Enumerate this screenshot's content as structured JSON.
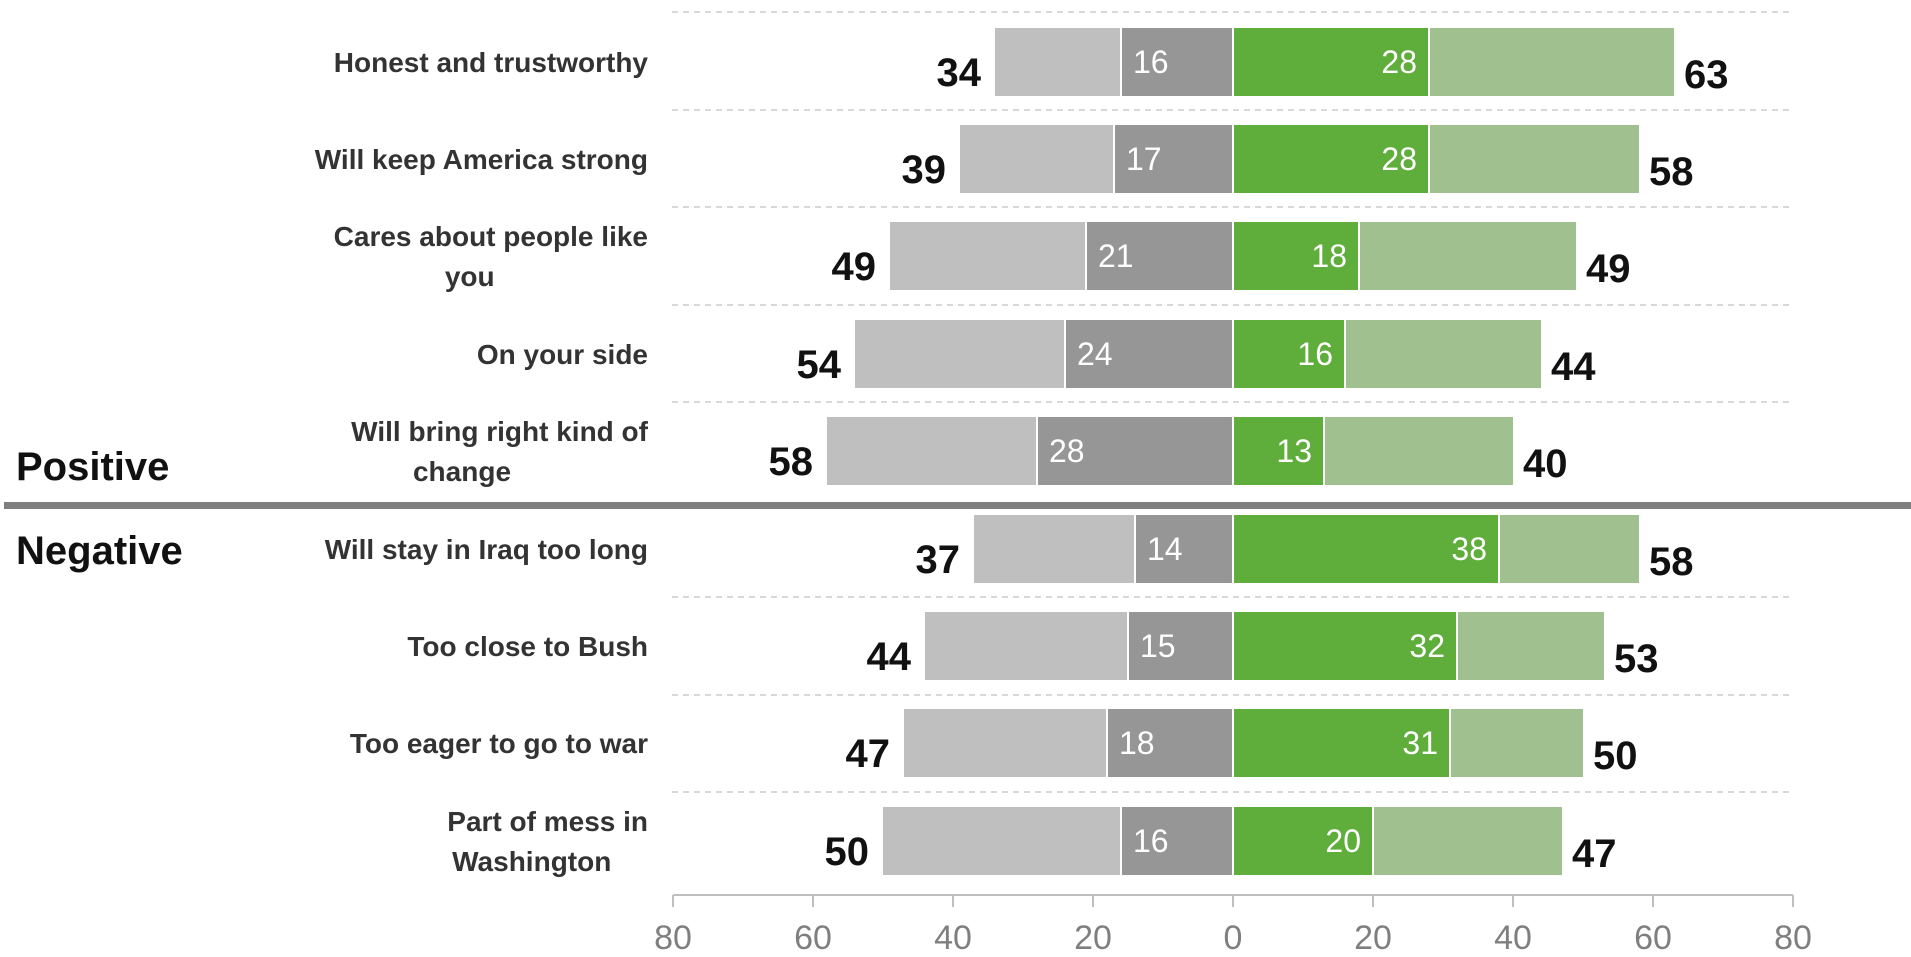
{
  "chart_data": {
    "type": "bar",
    "orientation": "horizontal-diverging",
    "groups": [
      {
        "name": "Positive",
        "items": [
          0,
          1,
          2,
          3,
          4
        ]
      },
      {
        "name": "Negative",
        "items": [
          5,
          6,
          7,
          8
        ]
      }
    ],
    "categories": [
      [
        "Honest and trustworthy"
      ],
      [
        "Will keep America strong"
      ],
      [
        "Cares about people like",
        "you"
      ],
      [
        "On your side"
      ],
      [
        "Will bring right kind of",
        "change"
      ],
      [
        "Will stay in Iraq too long"
      ],
      [
        "Too close to Bush"
      ],
      [
        "Too eager to go to war"
      ],
      [
        "Part of mess in",
        "Washington"
      ]
    ],
    "left_total": [
      34,
      39,
      49,
      54,
      58,
      37,
      44,
      47,
      50
    ],
    "left_strong": [
      16,
      17,
      21,
      24,
      28,
      14,
      15,
      18,
      16
    ],
    "right_strong": [
      28,
      28,
      18,
      16,
      13,
      38,
      32,
      31,
      20
    ],
    "right_total": [
      63,
      58,
      49,
      44,
      40,
      58,
      53,
      50,
      47
    ],
    "x_ticks": [
      "80",
      "60",
      "40",
      "20",
      "0",
      "20",
      "40",
      "60",
      "80"
    ],
    "xlim": [
      -80,
      80
    ],
    "colors": {
      "left_total": "#bfbfbf",
      "left_strong": "#969696",
      "right_strong": "#5fad3b",
      "right_total": "#a1c08f",
      "grid": "#cccccc",
      "divider": "#7f7f7f",
      "axis": "#bfbfbf"
    }
  }
}
